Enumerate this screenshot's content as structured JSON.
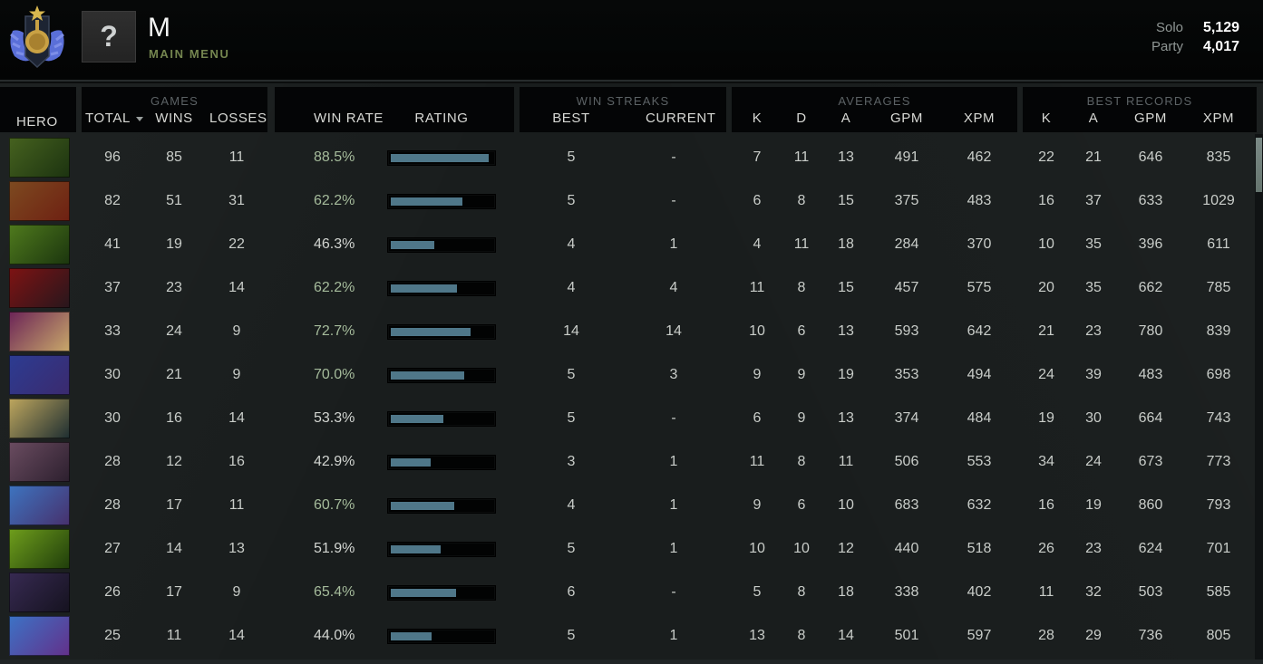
{
  "top_bar": {
    "player_name": "M",
    "context_label": "MAIN MENU",
    "avatar_glyph": "?",
    "mmr": {
      "solo_label": "Solo",
      "solo_value": "5,129",
      "party_label": "Party",
      "party_value": "4,017"
    }
  },
  "colors": {
    "win_rate_positive": "#a5bb9b",
    "win_rate_neutral": "#d2d5d1",
    "rating_bar_fill": "#4f7789",
    "context_label_green": "#74854f",
    "panel_black": "#040506",
    "background": "#191d1d"
  },
  "table": {
    "groups": {
      "games": "GAMES",
      "win_streaks": "WIN STREAKS",
      "averages": "AVERAGES",
      "best_records": "BEST RECORDS"
    },
    "columns": {
      "hero": "HERO",
      "total": "TOTAL",
      "wins": "WINS",
      "losses": "LOSSES",
      "win_rate": "WIN RATE",
      "rating": "RATING",
      "best": "BEST",
      "current": "CURRENT",
      "k": "K",
      "d": "D",
      "a": "A",
      "gpm": "GPM",
      "xpm": "XPM",
      "rec_k": "K",
      "rec_a": "A",
      "rec_gpm": "GPM",
      "rec_xpm": "XPM"
    },
    "sort_column": "total",
    "rows": [
      {
        "portrait": {
          "icon": "natures-prophet",
          "colors": [
            "#46621f",
            "#1c3310"
          ]
        },
        "total": 96,
        "wins": 85,
        "losses": 11,
        "win_rate": "88.5%",
        "win_rate_green": true,
        "rating_percent": 97,
        "streak": {
          "best": "5",
          "current": "-"
        },
        "avg": {
          "k": 7,
          "d": 11,
          "a": 13,
          "gpm": 491,
          "xpm": 462
        },
        "rec": {
          "k": 22,
          "a": 21,
          "gpm": 646,
          "xpm": 835
        }
      },
      {
        "portrait": {
          "icon": "earthshaker",
          "colors": [
            "#7d4a20",
            "#6e2012"
          ]
        },
        "total": 82,
        "wins": 51,
        "losses": 31,
        "win_rate": "62.2%",
        "win_rate_green": true,
        "rating_percent": 72,
        "streak": {
          "best": "5",
          "current": "-"
        },
        "avg": {
          "k": 6,
          "d": 8,
          "a": 15,
          "gpm": 375,
          "xpm": 483
        },
        "rec": {
          "k": 16,
          "a": 37,
          "gpm": 633,
          "xpm": 1029
        }
      },
      {
        "portrait": {
          "icon": "timbersaw",
          "colors": [
            "#4f7a1d",
            "#1b350e"
          ]
        },
        "total": 41,
        "wins": 19,
        "losses": 22,
        "win_rate": "46.3%",
        "win_rate_green": false,
        "rating_percent": 46,
        "streak": {
          "best": "4",
          "current": "1"
        },
        "avg": {
          "k": 4,
          "d": 11,
          "a": 18,
          "gpm": 284,
          "xpm": 370
        },
        "rec": {
          "k": 10,
          "a": 35,
          "gpm": 396,
          "xpm": 611
        }
      },
      {
        "portrait": {
          "icon": "queen-of-pain",
          "colors": [
            "#7e1313",
            "#27161c"
          ]
        },
        "total": 37,
        "wins": 23,
        "losses": 14,
        "win_rate": "62.2%",
        "win_rate_green": true,
        "rating_percent": 67,
        "streak": {
          "best": "4",
          "current": "4"
        },
        "avg": {
          "k": 11,
          "d": 8,
          "a": 15,
          "gpm": 457,
          "xpm": 575
        },
        "rec": {
          "k": 20,
          "a": 35,
          "gpm": 662,
          "xpm": 785
        }
      },
      {
        "portrait": {
          "icon": "invoker",
          "colors": [
            "#6b2357",
            "#c9a96a"
          ]
        },
        "total": 33,
        "wins": 24,
        "losses": 9,
        "win_rate": "72.7%",
        "win_rate_green": true,
        "rating_percent": 80,
        "streak": {
          "best": "14",
          "current": "14"
        },
        "avg": {
          "k": 10,
          "d": 6,
          "a": 13,
          "gpm": 593,
          "xpm": 642
        },
        "rec": {
          "k": 21,
          "a": 23,
          "gpm": 780,
          "xpm": 839
        }
      },
      {
        "portrait": {
          "icon": "riki",
          "colors": [
            "#2c3c92",
            "#3b2a6e"
          ]
        },
        "total": 30,
        "wins": 21,
        "losses": 9,
        "win_rate": "70.0%",
        "win_rate_green": true,
        "rating_percent": 74,
        "streak": {
          "best": "5",
          "current": "3"
        },
        "avg": {
          "k": 9,
          "d": 9,
          "a": 19,
          "gpm": 353,
          "xpm": 494
        },
        "rec": {
          "k": 24,
          "a": 39,
          "gpm": 483,
          "xpm": 698
        }
      },
      {
        "portrait": {
          "icon": "juggernaut",
          "colors": [
            "#bfa75e",
            "#1d2d31"
          ]
        },
        "total": 30,
        "wins": 16,
        "losses": 14,
        "win_rate": "53.3%",
        "win_rate_green": false,
        "rating_percent": 54,
        "streak": {
          "best": "5",
          "current": "-"
        },
        "avg": {
          "k": 6,
          "d": 9,
          "a": 13,
          "gpm": 374,
          "xpm": 484
        },
        "rec": {
          "k": 19,
          "a": 30,
          "gpm": 664,
          "xpm": 743
        }
      },
      {
        "portrait": {
          "icon": "tinker",
          "colors": [
            "#6a4c60",
            "#2c1f2e"
          ]
        },
        "total": 28,
        "wins": 12,
        "losses": 16,
        "win_rate": "42.9%",
        "win_rate_green": false,
        "rating_percent": 42,
        "streak": {
          "best": "3",
          "current": "1"
        },
        "avg": {
          "k": 11,
          "d": 8,
          "a": 11,
          "gpm": 506,
          "xpm": 553
        },
        "rec": {
          "k": 34,
          "a": 24,
          "gpm": 673,
          "xpm": 773
        }
      },
      {
        "portrait": {
          "icon": "oracle",
          "colors": [
            "#3d74c0",
            "#47306c"
          ]
        },
        "total": 28,
        "wins": 17,
        "losses": 11,
        "win_rate": "60.7%",
        "win_rate_green": true,
        "rating_percent": 64,
        "streak": {
          "best": "4",
          "current": "1"
        },
        "avg": {
          "k": 9,
          "d": 6,
          "a": 10,
          "gpm": 683,
          "xpm": 632
        },
        "rec": {
          "k": 16,
          "a": 19,
          "gpm": 860,
          "xpm": 793
        }
      },
      {
        "portrait": {
          "icon": "death-prophet",
          "colors": [
            "#6f9e1c",
            "#1f3d0b"
          ]
        },
        "total": 27,
        "wins": 14,
        "losses": 13,
        "win_rate": "51.9%",
        "win_rate_green": false,
        "rating_percent": 52,
        "streak": {
          "best": "5",
          "current": "1"
        },
        "avg": {
          "k": 10,
          "d": 10,
          "a": 12,
          "gpm": 440,
          "xpm": 518
        },
        "rec": {
          "k": 26,
          "a": 23,
          "gpm": 624,
          "xpm": 701
        }
      },
      {
        "portrait": {
          "icon": "rubick",
          "colors": [
            "#372a52",
            "#15121f"
          ]
        },
        "total": 26,
        "wins": 17,
        "losses": 9,
        "win_rate": "65.4%",
        "win_rate_green": true,
        "rating_percent": 66,
        "streak": {
          "best": "6",
          "current": "-"
        },
        "avg": {
          "k": 5,
          "d": 8,
          "a": 18,
          "gpm": 338,
          "xpm": 402
        },
        "rec": {
          "k": 11,
          "a": 32,
          "gpm": 503,
          "xpm": 585
        }
      },
      {
        "portrait": {
          "icon": "puck",
          "colors": [
            "#3c73c6",
            "#63308a"
          ]
        },
        "total": 25,
        "wins": 11,
        "losses": 14,
        "win_rate": "44.0%",
        "win_rate_green": false,
        "rating_percent": 43,
        "streak": {
          "best": "5",
          "current": "1"
        },
        "avg": {
          "k": 13,
          "d": 8,
          "a": 14,
          "gpm": 501,
          "xpm": 597
        },
        "rec": {
          "k": 28,
          "a": 29,
          "gpm": 736,
          "xpm": 805
        }
      }
    ]
  }
}
